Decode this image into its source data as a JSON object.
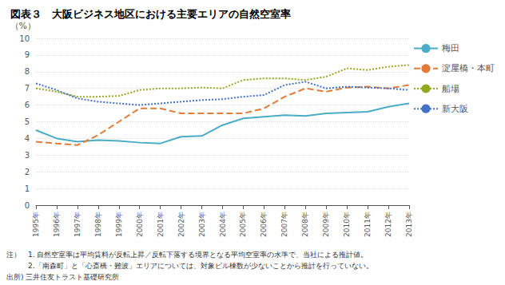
{
  "chart_data": {
    "type": "line",
    "title": "図表３　大阪ビジネス地区における主要エリアの自然空室率",
    "ylabel": "（%）",
    "categories": [
      "1995年",
      "1996年",
      "1997年",
      "1998年",
      "1999年",
      "2000年",
      "2001年",
      "2002年",
      "2003年",
      "2004年",
      "2005年",
      "2006年",
      "2007年",
      "2008年",
      "2009年",
      "2010年",
      "2011年",
      "2012年",
      "2013年"
    ],
    "series": [
      {
        "name": "梅田",
        "color": "#4bacc6",
        "line_style": "solid",
        "values": [
          4.5,
          4.0,
          3.8,
          3.9,
          3.85,
          3.75,
          3.7,
          4.1,
          4.15,
          4.8,
          5.2,
          5.3,
          5.4,
          5.35,
          5.5,
          5.55,
          5.6,
          5.9,
          6.1
        ]
      },
      {
        "name": "淀屋橋・本町",
        "color": "#e07b39",
        "line_style": "dashed",
        "values": [
          3.8,
          3.7,
          3.6,
          4.2,
          5.0,
          5.8,
          5.8,
          5.5,
          5.5,
          5.5,
          5.5,
          5.8,
          6.5,
          7.0,
          6.8,
          7.05,
          7.1,
          7.0,
          7.2
        ]
      },
      {
        "name": "船場",
        "color": "#92a820",
        "line_style": "dotted",
        "values": [
          7.0,
          6.8,
          6.5,
          6.5,
          6.55,
          6.9,
          7.0,
          7.0,
          7.05,
          7.0,
          7.5,
          7.6,
          7.6,
          7.5,
          7.7,
          8.2,
          8.1,
          8.3,
          8.4
        ]
      },
      {
        "name": "新大阪",
        "color": "#4472c4",
        "line_style": "dotted",
        "values": [
          7.3,
          6.9,
          6.4,
          6.2,
          6.1,
          6.0,
          6.1,
          6.2,
          6.3,
          6.35,
          6.5,
          6.6,
          7.2,
          7.4,
          7.0,
          7.1,
          7.05,
          7.0,
          6.9
        ]
      }
    ],
    "ylim": [
      0,
      10
    ],
    "yticks": [
      0,
      1,
      2,
      3,
      4,
      5,
      6,
      7,
      8,
      9,
      10
    ],
    "grid": true,
    "legend": "right",
    "annotations": [
      "注）　1. 自然空室率は平均賃料が反転上昇／反転下落する境界となる平均空室率の水準で、当社による推計値。",
      "　　　2.「南森町」と「心斎橋・難波」エリアについては、対象ビル棟数が少ないことから推計を行っていない。",
      "出所) 三井住友トラスト基礎研究所"
    ]
  }
}
